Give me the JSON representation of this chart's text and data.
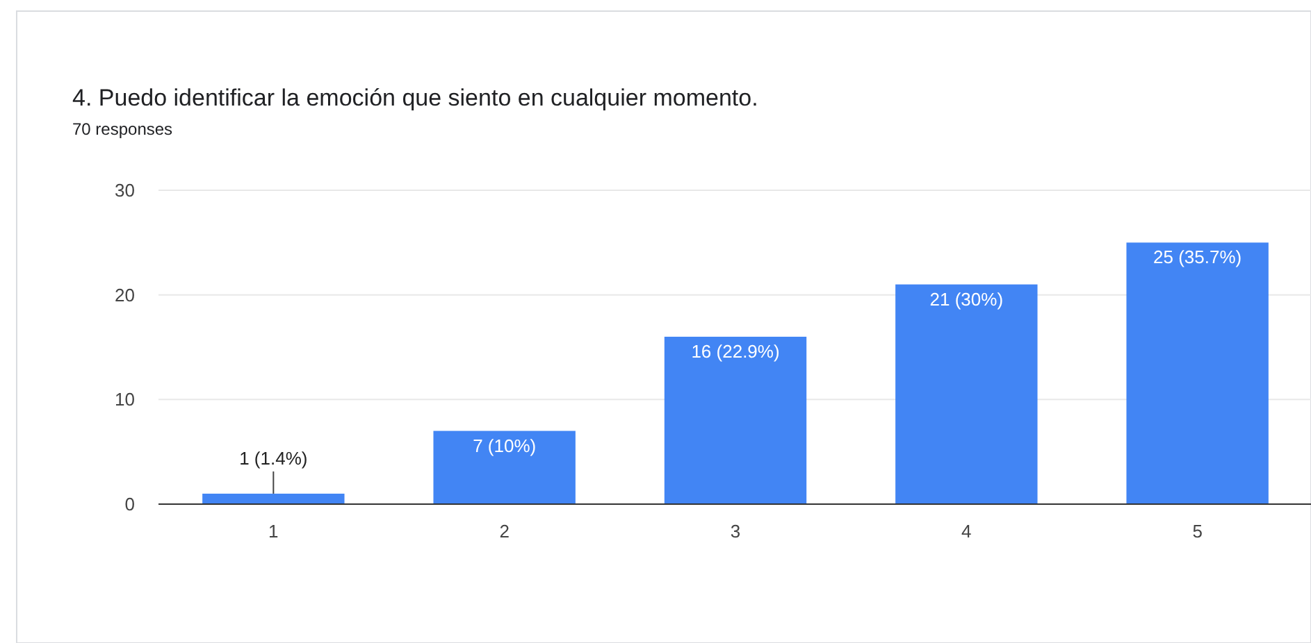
{
  "chart_data": {
    "type": "bar",
    "title": "4. Puedo identificar la emoción que siento en cualquier momento.",
    "subtitle": "70 responses",
    "categories": [
      "1",
      "2",
      "3",
      "4",
      "5"
    ],
    "values": [
      1,
      7,
      16,
      21,
      25
    ],
    "value_labels": [
      "1 (1.4%)",
      "7 (10%)",
      "16 (22.9%)",
      "21 (30%)",
      "25 (35.7%)"
    ],
    "color": "#4285f4",
    "ylim": [
      0,
      30
    ],
    "yticks": [
      0,
      10,
      20,
      30
    ],
    "grid": "y"
  }
}
